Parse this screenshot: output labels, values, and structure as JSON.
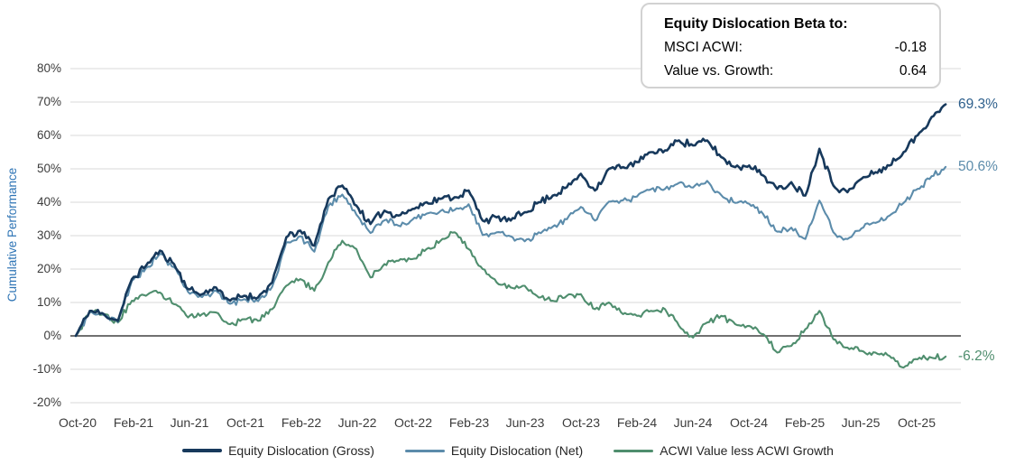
{
  "beta_box": {
    "title": "Equity Dislocation Beta to:",
    "rows": [
      {
        "label": "MSCI ACWI:",
        "value": "-0.18"
      },
      {
        "label": "Value vs. Growth:",
        "value": "0.64"
      }
    ]
  },
  "colors": {
    "ylabel": "#2E74B5",
    "axis_text": "#3C3C3C",
    "gridline": "#DADADA",
    "zero_line": "#404040"
  },
  "chart_data": {
    "type": "line",
    "title": "",
    "ylabel": "Cumulative Performance",
    "ylim": [
      -20,
      80
    ],
    "y_ticks": [
      80,
      70,
      60,
      50,
      40,
      30,
      20,
      10,
      0,
      -10,
      -20
    ],
    "x_start": "Oct-20",
    "x_end": "Dec-25",
    "x_interval": "monthly",
    "x_tick_labels": [
      "Oct-20",
      "Feb-21",
      "Jun-21",
      "Oct-21",
      "Feb-22",
      "Jun-22",
      "Oct-22",
      "Feb-23",
      "Jun-23",
      "Oct-23",
      "Feb-24",
      "Jun-24",
      "Oct-24",
      "Feb-25",
      "Jun-25",
      "Oct-25"
    ],
    "grid": "horizontal-only",
    "legend_position": "bottom-center",
    "series": [
      {
        "name": "Equity Dislocation (Gross)",
        "color": "#17395C",
        "label_color": "#2D5F8C",
        "end_label": "69.3%",
        "values": [
          0,
          7.5,
          6.5,
          4.5,
          17,
          21,
          25.5,
          21.5,
          14,
          12.5,
          14.5,
          10.5,
          12,
          11.5,
          16,
          29.5,
          31.5,
          27,
          41,
          45,
          39,
          33.5,
          37.5,
          36,
          38,
          40,
          41,
          41.5,
          43.5,
          34.5,
          35.5,
          34.5,
          37,
          40,
          42,
          44.5,
          48.5,
          43.5,
          50,
          50.5,
          52,
          55,
          55.5,
          58.5,
          57,
          58.5,
          53.5,
          50.5,
          51,
          48,
          44,
          46,
          42,
          56,
          45,
          43,
          47,
          49,
          51,
          55,
          60,
          65.5,
          69.3
        ]
      },
      {
        "name": "Equity Dislocation (Net)",
        "color": "#5C8CAB",
        "label_color": "#5C8CAB",
        "end_label": "50.6%",
        "values": [
          0,
          7.2,
          6.2,
          4.2,
          16.5,
          20.3,
          24.6,
          20.6,
          13.2,
          11.6,
          13.5,
          9.6,
          11,
          10.4,
          14.7,
          28,
          29.8,
          25.2,
          38.8,
          42.3,
          36.3,
          30.8,
          34.6,
          33,
          34.8,
          36.6,
          37.4,
          37.7,
          39.4,
          30.2,
          31,
          29.8,
          28.3,
          31,
          32.7,
          34.9,
          38.6,
          34.5,
          40.2,
          40.6,
          41.7,
          43.9,
          44,
          45.8,
          44.4,
          46.4,
          42.2,
          39.8,
          39.5,
          36.4,
          31.2,
          32.4,
          29,
          40.5,
          31,
          29,
          32.2,
          33.8,
          36,
          39.8,
          44,
          47.8,
          50.6
        ]
      },
      {
        "name": "ACWI Value less ACWI Growth",
        "color": "#4F8E6E",
        "label_color": "#4F8E6E",
        "end_label": "-6.2%",
        "values": [
          0,
          7,
          6.5,
          4,
          10.5,
          12,
          13,
          9.5,
          5.5,
          6.5,
          7,
          3.5,
          5,
          4.5,
          8,
          15,
          17,
          13.5,
          22,
          28.5,
          26,
          17.5,
          21.5,
          22.5,
          23,
          26,
          28.5,
          31,
          26,
          20,
          16,
          14.5,
          15,
          11.5,
          10.5,
          12,
          12.5,
          8,
          10,
          6.5,
          6,
          7.5,
          8,
          3,
          -0.5,
          4,
          6,
          3.5,
          3,
          0.5,
          -5,
          -3,
          2,
          7.5,
          -1,
          -3.5,
          -4.5,
          -5,
          -6,
          -9.5,
          -7,
          -6.5,
          -6.2
        ]
      }
    ]
  }
}
